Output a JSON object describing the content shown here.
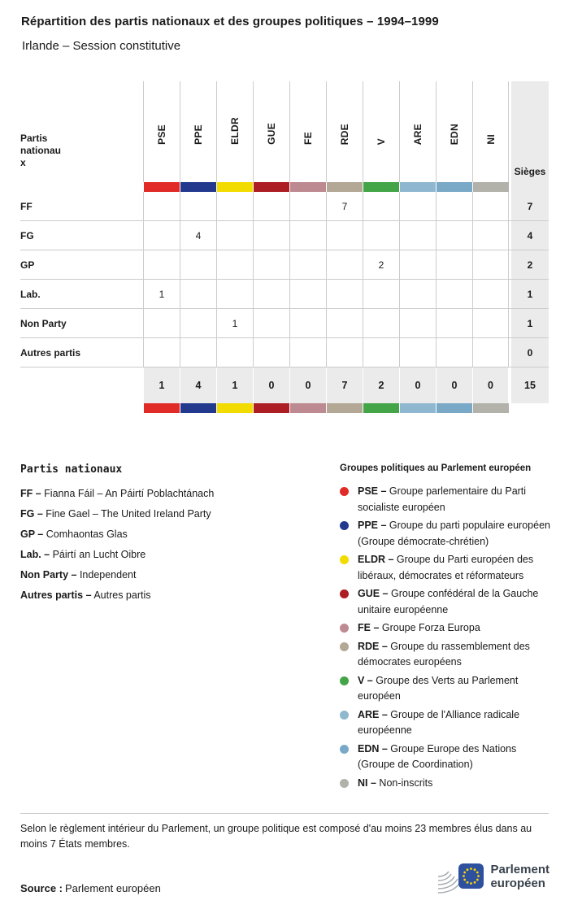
{
  "header": {
    "title": "Répartition des partis nationaux et des groupes politiques – 1994–1999",
    "subtitle": "Irlande – Session constitutive"
  },
  "chart_data": {
    "type": "table",
    "title": "Répartition des partis nationaux et des groupes politiques – 1994–1999",
    "subtitle": "Irlande – Session constitutive",
    "corner_label": "Partis nationaux",
    "seats_label": "Sièges",
    "groups": [
      {
        "code": "PSE",
        "color": "#e02b27"
      },
      {
        "code": "PPE",
        "color": "#23398e"
      },
      {
        "code": "ELDR",
        "color": "#f2dc00"
      },
      {
        "code": "GUE",
        "color": "#ad1d24"
      },
      {
        "code": "FE",
        "color": "#bd8a92"
      },
      {
        "code": "RDE",
        "color": "#b3a795"
      },
      {
        "code": "V",
        "color": "#43a547"
      },
      {
        "code": "ARE",
        "color": "#8fb8d0"
      },
      {
        "code": "EDN",
        "color": "#7aa9c7"
      },
      {
        "code": "NI",
        "color": "#b2b2ab"
      }
    ],
    "rows": [
      {
        "party": "FF",
        "values": [
          "",
          "",
          "",
          "",
          "",
          "7",
          "",
          "",
          "",
          ""
        ],
        "seats": "7"
      },
      {
        "party": "FG",
        "values": [
          "",
          "4",
          "",
          "",
          "",
          "",
          "",
          "",
          "",
          ""
        ],
        "seats": "4"
      },
      {
        "party": "GP",
        "values": [
          "",
          "",
          "",
          "",
          "",
          "",
          "2",
          "",
          "",
          ""
        ],
        "seats": "2"
      },
      {
        "party": "Lab.",
        "values": [
          "1",
          "",
          "",
          "",
          "",
          "",
          "",
          "",
          "",
          ""
        ],
        "seats": "1"
      },
      {
        "party": "Non Party",
        "values": [
          "",
          "",
          "1",
          "",
          "",
          "",
          "",
          "",
          "",
          ""
        ],
        "seats": "1"
      },
      {
        "party": "Autres partis",
        "values": [
          "",
          "",
          "",
          "",
          "",
          "",
          "",
          "",
          "",
          ""
        ],
        "seats": "0"
      }
    ],
    "totals": {
      "values": [
        "1",
        "4",
        "1",
        "0",
        "0",
        "7",
        "2",
        "0",
        "0",
        "0"
      ],
      "seats": "15"
    }
  },
  "legend_parties": {
    "title": "Partis nationaux",
    "separator": "–",
    "items": [
      {
        "code": "FF",
        "name": "Fianna Fáil – An Páirtí Poblachtánach"
      },
      {
        "code": "FG",
        "name": "Fine Gael – The United Ireland Party"
      },
      {
        "code": "GP",
        "name": "Comhaontas Glas"
      },
      {
        "code": "Lab.",
        "name": "Páirtí an Lucht Oibre"
      },
      {
        "code": "Non Party",
        "name": "Independent"
      },
      {
        "code": "Autres partis",
        "name": "Autres partis"
      }
    ]
  },
  "legend_groups": {
    "title": "Groupes politiques au Parlement européen",
    "separator": "–",
    "items": [
      {
        "code": "PSE",
        "color": "#e02b27",
        "name": "Groupe parlementaire du Parti socialiste européen"
      },
      {
        "code": "PPE",
        "color": "#23398e",
        "name": "Groupe du parti populaire européen (Groupe démocrate-chrétien)"
      },
      {
        "code": "ELDR",
        "color": "#f2dc00",
        "name": "Groupe du Parti européen des libéraux, démocrates et réformateurs"
      },
      {
        "code": "GUE",
        "color": "#ad1d24",
        "name": "Groupe confédéral de la Gauche unitaire européenne"
      },
      {
        "code": "FE",
        "color": "#bd8a92",
        "name": "Groupe Forza Europa"
      },
      {
        "code": "RDE",
        "color": "#b3a795",
        "name": "Groupe du rassemblement des démocrates européens"
      },
      {
        "code": "V",
        "color": "#43a547",
        "name": "Groupe des Verts au Parlement européen"
      },
      {
        "code": "ARE",
        "color": "#8fb8d0",
        "name": "Groupe de l'Alliance radicale européenne"
      },
      {
        "code": "EDN",
        "color": "#7aa9c7",
        "name": "Groupe Europe des Nations (Groupe de Coordination)"
      },
      {
        "code": "NI",
        "color": "#b2b2ab",
        "name": "Non-inscrits"
      }
    ]
  },
  "footnote": "Selon le règlement intérieur du Parlement, un groupe politique est composé d'au moins 23 membres élus dans au moins 7 États membres.",
  "source": {
    "label": "Source :",
    "value": "Parlement européen"
  },
  "logo": {
    "line1": "Parlement",
    "line2": "européen"
  }
}
